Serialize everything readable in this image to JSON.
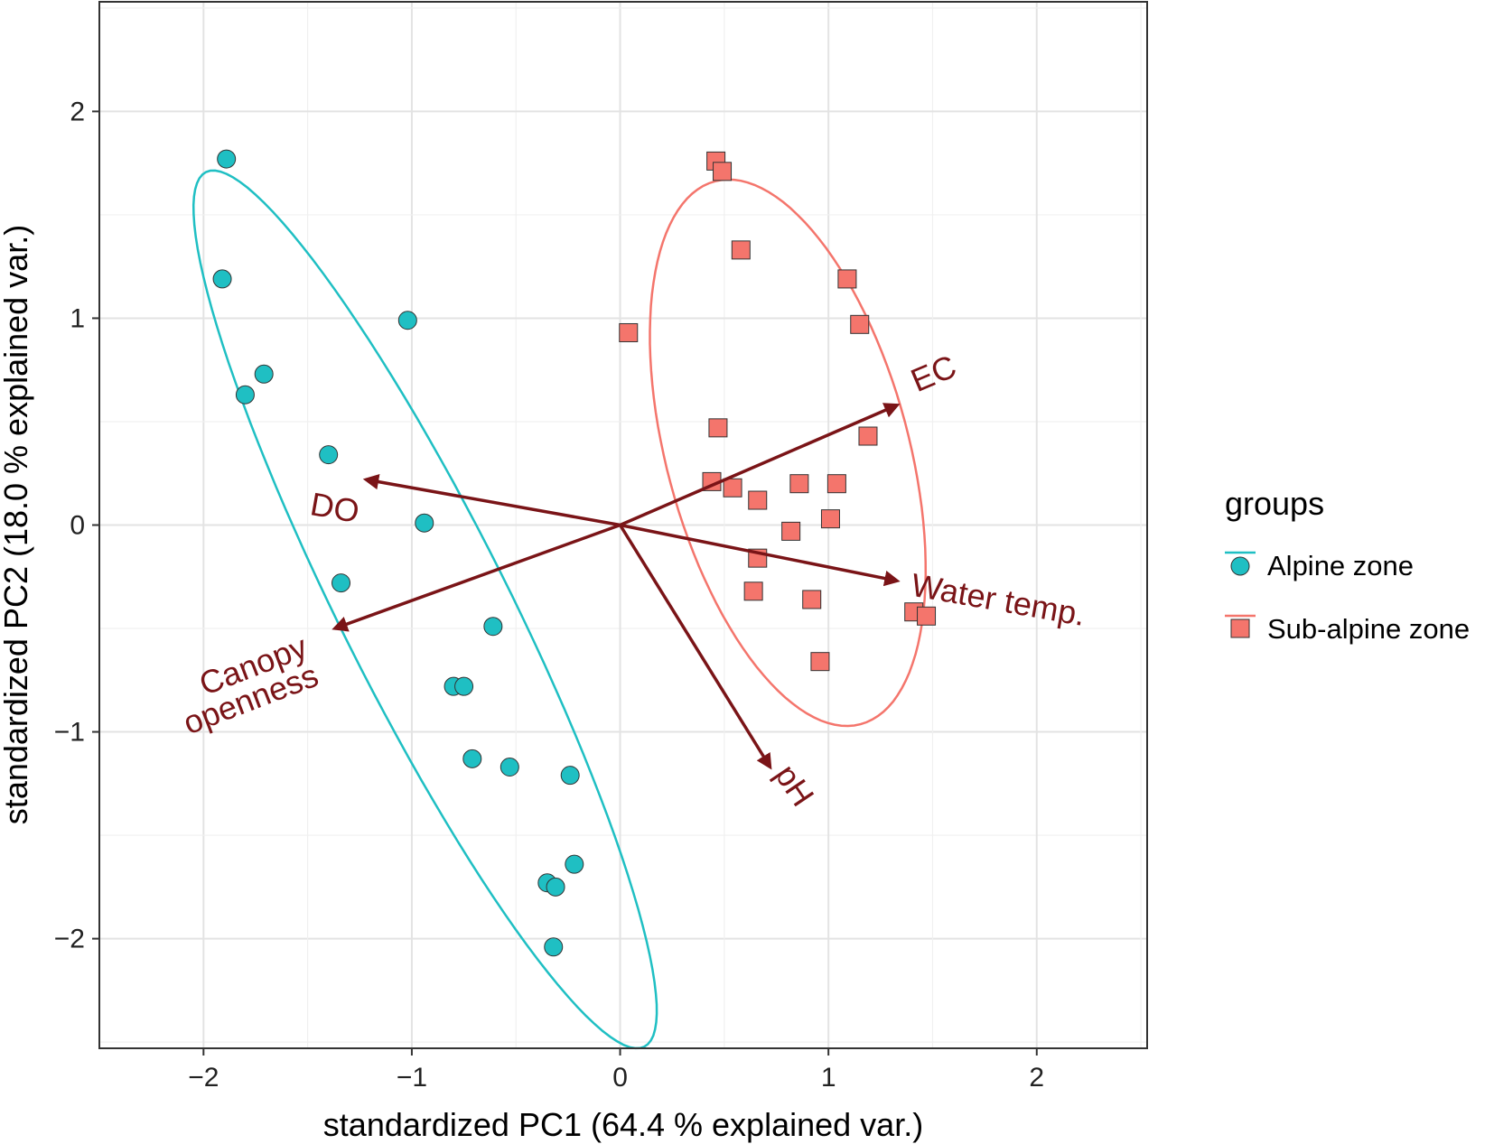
{
  "chart_data": {
    "type": "scatter",
    "xlabel": "standardized PC1 (64.4 % explained var.)",
    "ylabel": "standardized PC2 (18.0 % explained var.)",
    "xlim": [
      -2.5,
      2.53
    ],
    "ylim": [
      -2.53,
      2.53
    ],
    "xticks": [
      {
        "value": -2,
        "label": "−2"
      },
      {
        "value": -1,
        "label": "−1"
      },
      {
        "value": 0,
        "label": "0"
      },
      {
        "value": 1,
        "label": "1"
      },
      {
        "value": 2,
        "label": "2"
      }
    ],
    "yticks": [
      {
        "value": -2,
        "label": "−2"
      },
      {
        "value": -1,
        "label": "−1"
      },
      {
        "value": 0,
        "label": "0"
      },
      {
        "value": 1,
        "label": "1"
      },
      {
        "value": 2,
        "label": "2"
      }
    ],
    "grid": true,
    "legend": {
      "title": "groups",
      "placement": "right",
      "entries": [
        {
          "label": "Alpine zone",
          "color": "#1fbfc3",
          "marker": "circle"
        },
        {
          "label": "Sub-alpine zone",
          "color": "#f4756c",
          "marker": "square"
        }
      ]
    },
    "series": [
      {
        "name": "Alpine zone",
        "color": "#1fbfc3",
        "marker": "circle",
        "x": [
          -1.89,
          -1.91,
          -1.71,
          -1.8,
          -1.02,
          -1.4,
          -0.94,
          -1.34,
          -0.61,
          -0.8,
          -0.75,
          -0.71,
          -0.53,
          -0.24,
          -0.22,
          -0.35,
          -0.31,
          -0.32
        ],
        "y": [
          1.77,
          1.19,
          0.73,
          0.63,
          0.99,
          0.34,
          0.01,
          -0.28,
          -0.49,
          -0.78,
          -0.78,
          -1.13,
          -1.17,
          -1.21,
          -1.64,
          -1.73,
          -1.75,
          -2.04
        ]
      },
      {
        "name": "Sub-alpine zone",
        "color": "#f4756c",
        "marker": "square",
        "x": [
          0.46,
          0.49,
          0.58,
          0.04,
          1.09,
          1.15,
          0.47,
          1.19,
          0.44,
          0.54,
          0.66,
          0.86,
          1.04,
          1.01,
          0.82,
          0.66,
          0.64,
          0.92,
          1.41,
          1.47,
          0.96
        ],
        "y": [
          1.76,
          1.71,
          1.33,
          0.93,
          1.19,
          0.97,
          0.47,
          0.43,
          0.21,
          0.18,
          0.12,
          0.2,
          0.2,
          0.03,
          -0.03,
          -0.16,
          -0.32,
          -0.36,
          -0.42,
          -0.44,
          -0.66
        ]
      }
    ],
    "ellipse_color_alpine": "#1fbfc3",
    "ellipse_color_subalpine": "#f4756c",
    "vectors": [
      {
        "label": "EC",
        "x": 1.33,
        "y": 0.58
      },
      {
        "label": "DO",
        "x": -1.22,
        "y": 0.22
      },
      {
        "label": "Water temp.",
        "x": 1.33,
        "y": -0.27
      },
      {
        "label": "Canopy",
        "label2": "openness",
        "x": -1.37,
        "y": -0.5
      },
      {
        "label": "pH",
        "x": 0.72,
        "y": -1.17
      }
    ],
    "vector_color": "#7a1417"
  }
}
